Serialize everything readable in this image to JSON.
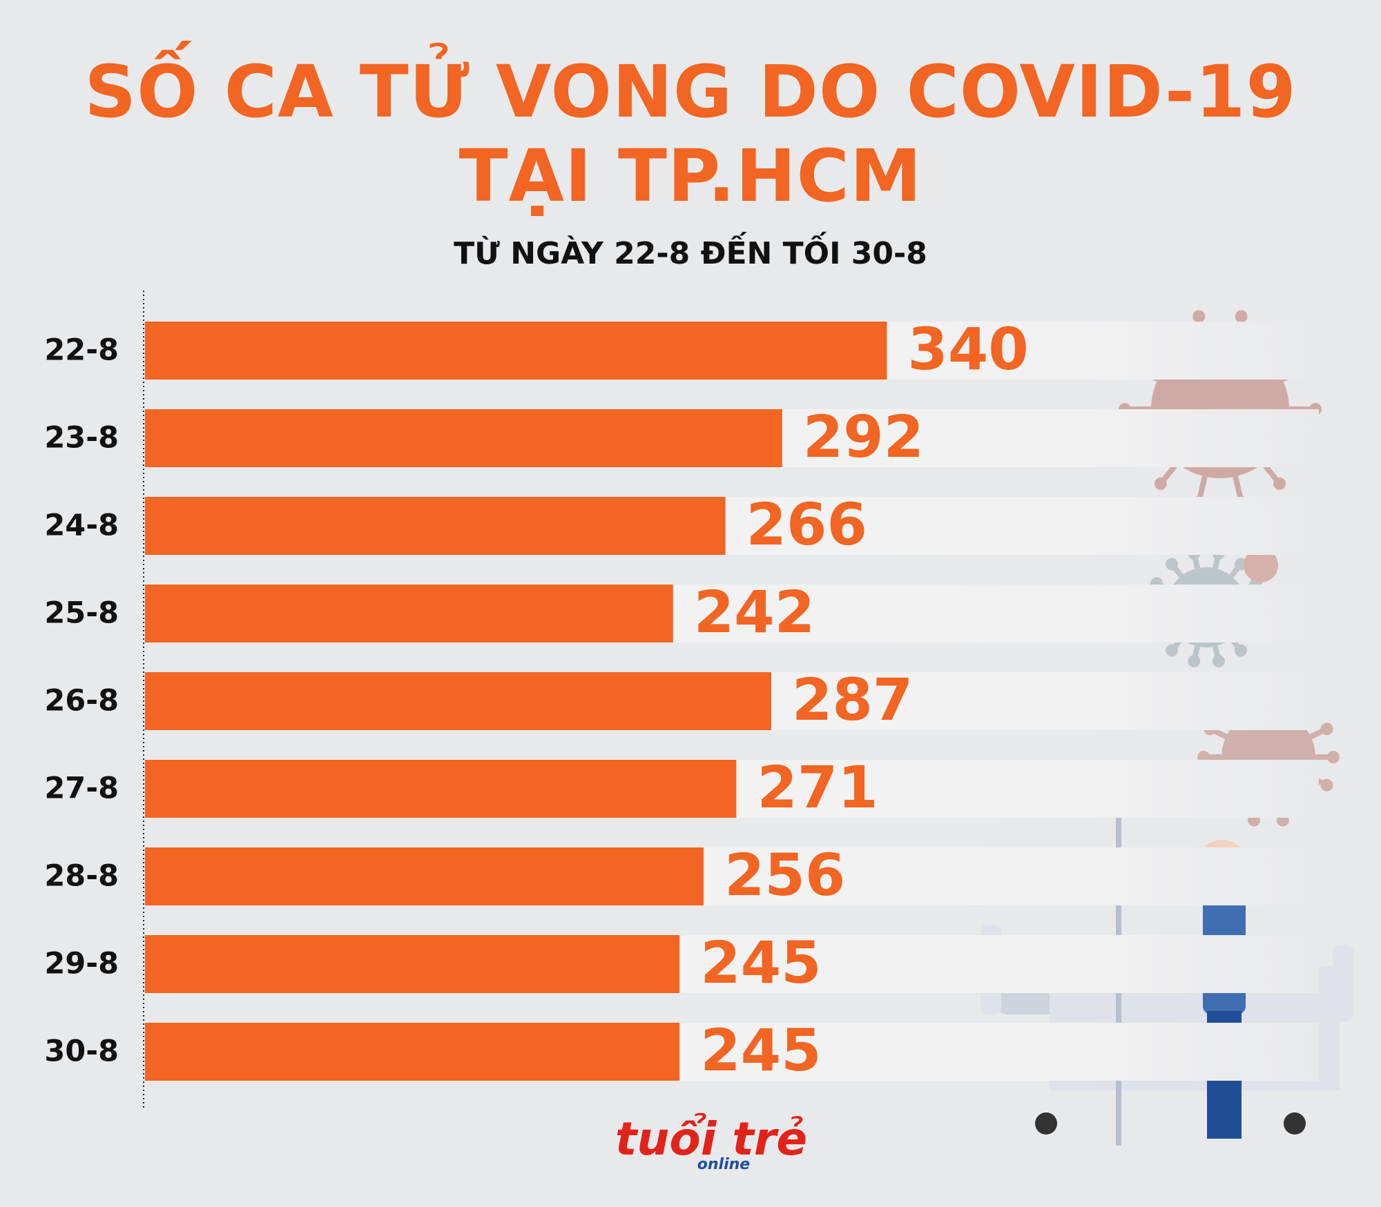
{
  "chart_data": {
    "type": "hbar",
    "title": "SỐ CA TỬ VONG DO COVID-19\nTẠI TP.HCM",
    "subtitle": "TỪ NGÀY 22-8 ĐẾN TỐI 30-8",
    "categories": [
      "22-8",
      "23-8",
      "24-8",
      "25-8",
      "26-8",
      "27-8",
      "28-8",
      "29-8",
      "30-8"
    ],
    "values": [
      340,
      292,
      266,
      242,
      287,
      271,
      256,
      245,
      245
    ],
    "color": "#f26522"
  },
  "logo": {
    "name": "tuổi trẻ",
    "sub": "online"
  }
}
